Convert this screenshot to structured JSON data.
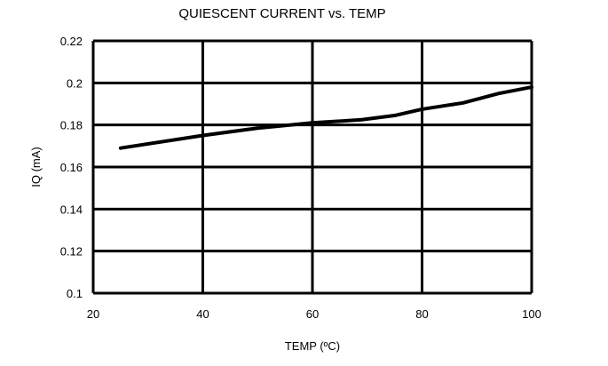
{
  "chart_data": {
    "type": "line",
    "title": "QUIESCENT CURRENT vs. TEMP",
    "xlabel": "TEMP (ºC)",
    "ylabel": "IQ (mA)",
    "xlim": [
      20,
      100
    ],
    "ylim": [
      0.1,
      0.22
    ],
    "xticks": [
      "20",
      "40",
      "60",
      "80",
      "100"
    ],
    "yticks": [
      "0.1",
      "0.12",
      "0.14",
      "0.16",
      "0.18",
      "0.2",
      "0.22"
    ],
    "grid": true,
    "colors": {
      "line": "#000000",
      "grid": "#000000"
    },
    "series": [
      {
        "x": [
          25,
          40,
          50,
          60,
          69,
          75,
          80,
          87.5,
          94,
          100
        ],
        "y": [
          0.169,
          0.175,
          0.1785,
          0.181,
          0.1825,
          0.1845,
          0.1875,
          0.1905,
          0.195,
          0.198
        ]
      }
    ]
  }
}
